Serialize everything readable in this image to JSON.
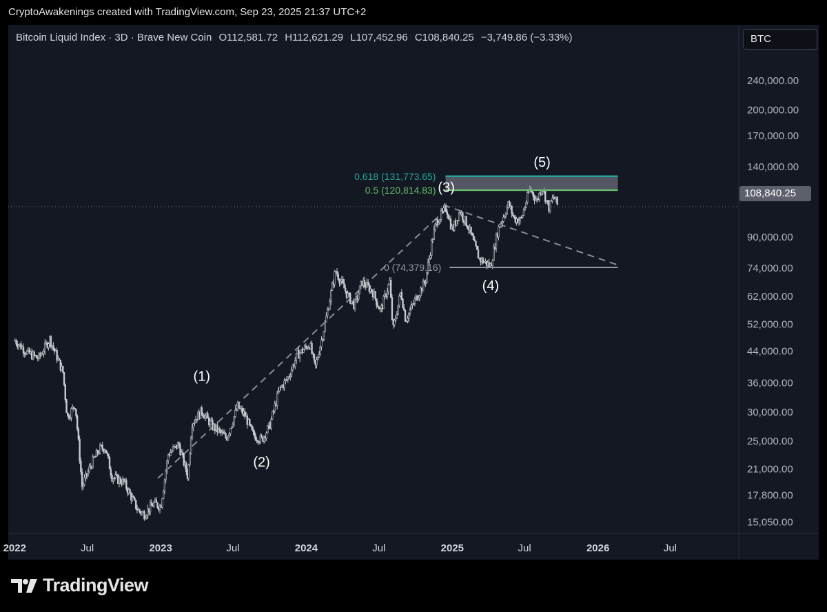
{
  "header": {
    "caption": "CryptoAwakenings created with TradingView.com, Sep 23, 2025 21:37 UTC+2"
  },
  "legend": {
    "title": "Bitcoin Liquid Index · 3D · Brave New Coin",
    "open": "O112,581.72",
    "high": "H112,621.29",
    "low": "L107,452.96",
    "close": "C108,840.25",
    "change": "−3,749.86 (−3.33%)"
  },
  "symbol_box": {
    "label": "BTC"
  },
  "last_price_badge": {
    "label": "108,840.25"
  },
  "footer": {
    "brand": "TradingView",
    "logo_icon": "tradingview-logo-icon"
  },
  "colors": {
    "background": "#141822",
    "candles": "#c8cacf",
    "fib_618": "#26a69a",
    "fib_05": "#66bb6a",
    "fib_0": "#9598a1",
    "zone": "#7e8190",
    "dashed_lines": "#8a8d96"
  },
  "chart_data": {
    "type": "line",
    "title": "Bitcoin Liquid Index · 3D · Brave New Coin",
    "scale": "log",
    "ylim": [
      14000,
      270000
    ],
    "xlim": [
      "2021-12-15",
      "2026-12-20"
    ],
    "y_ticks": [
      {
        "value": 15050,
        "label": "15,050.00"
      },
      {
        "value": 17800,
        "label": "17,800.00"
      },
      {
        "value": 21000,
        "label": "21,000.00"
      },
      {
        "value": 25000,
        "label": "25,000.00"
      },
      {
        "value": 30000,
        "label": "30,000.00"
      },
      {
        "value": 36000,
        "label": "36,000.00"
      },
      {
        "value": 44000,
        "label": "44,000.00"
      },
      {
        "value": 52000,
        "label": "52,000.00"
      },
      {
        "value": 62000,
        "label": "62,000.00"
      },
      {
        "value": 74000,
        "label": "74,000.00"
      },
      {
        "value": 90000,
        "label": "90,000.00"
      },
      {
        "value": 140000,
        "label": "140,000.00"
      },
      {
        "value": 170000,
        "label": "170,000.00"
      },
      {
        "value": 200000,
        "label": "200,000.00"
      },
      {
        "value": 240000,
        "label": "240,000.00"
      }
    ],
    "x_ticks": [
      {
        "date": "2021-12-31",
        "label": "2022"
      },
      {
        "date": "2022-07-01",
        "label": "Jul"
      },
      {
        "date": "2023-01-01",
        "label": "2023"
      },
      {
        "date": "2023-07-01",
        "label": "Jul"
      },
      {
        "date": "2024-01-01",
        "label": "2024"
      },
      {
        "date": "2024-07-01",
        "label": "Jul"
      },
      {
        "date": "2025-01-01",
        "label": "2025"
      },
      {
        "date": "2025-07-01",
        "label": "Jul"
      },
      {
        "date": "2026-01-01",
        "label": "2026"
      },
      {
        "date": "2026-07-01",
        "label": "Jul"
      }
    ],
    "series": [
      {
        "x": [
          "2022-01-01",
          "2022-02-01",
          "2022-03-01",
          "2022-03-29",
          "2022-05-01",
          "2022-05-12",
          "2022-06-01",
          "2022-06-18",
          "2022-07-10",
          "2022-08-01",
          "2022-08-15",
          "2022-09-01",
          "2022-10-01",
          "2022-11-05",
          "2022-11-21",
          "2022-12-15",
          "2023-01-01",
          "2023-01-20",
          "2023-02-15",
          "2023-03-10",
          "2023-03-20",
          "2023-04-14",
          "2023-05-10",
          "2023-06-15",
          "2023-07-13",
          "2023-08-01",
          "2023-08-20",
          "2023-09-11",
          "2023-10-01",
          "2023-10-25",
          "2023-11-15",
          "2023-12-10",
          "2024-01-10",
          "2024-01-23",
          "2024-02-15",
          "2024-03-14",
          "2024-04-15",
          "2024-05-01",
          "2024-05-20",
          "2024-06-15",
          "2024-07-05",
          "2024-07-28",
          "2024-08-05",
          "2024-08-25",
          "2024-09-06",
          "2024-10-01",
          "2024-10-25",
          "2024-11-12",
          "2024-11-22",
          "2024-12-17",
          "2025-01-01",
          "2025-01-20",
          "2025-02-10",
          "2025-02-28",
          "2025-03-10",
          "2025-04-07",
          "2025-04-25",
          "2025-05-22",
          "2025-06-05",
          "2025-06-22",
          "2025-07-14",
          "2025-08-01",
          "2025-08-14",
          "2025-08-30",
          "2025-09-13",
          "2025-09-23"
        ],
        "values": [
          47000,
          43500,
          42000,
          47500,
          38500,
          29000,
          31500,
          18800,
          21500,
          23800,
          24000,
          20000,
          19300,
          16200,
          15800,
          16900,
          16600,
          23000,
          24500,
          20000,
          28000,
          30200,
          27500,
          25500,
          31000,
          29300,
          26000,
          25200,
          27500,
          34500,
          37000,
          43000,
          46000,
          39500,
          51000,
          73000,
          62000,
          58500,
          68000,
          64000,
          56500,
          68000,
          50000,
          64000,
          53500,
          61000,
          68000,
          89000,
          99000,
          108000,
          94000,
          106000,
          96000,
          84000,
          78500,
          75000,
          94000,
          111000,
          101000,
          100000,
          122000,
          113000,
          124000,
          108000,
          116000,
          108840
        ]
      }
    ],
    "fib_levels": [
      {
        "ratio": "0.618",
        "label": "0.618 (131,773.65)",
        "value": 131773.65
      },
      {
        "ratio": "0.5",
        "label": "0.5 (120,814.83)",
        "value": 120814.83
      },
      {
        "ratio": "0",
        "label": "0 (74,379.16)",
        "value": 74379.16
      }
    ],
    "last_price": 108840.25,
    "wave_labels": [
      {
        "label": "(1)",
        "date": "2023-04-14",
        "value": 36500
      },
      {
        "label": "(2)",
        "date": "2023-09-11",
        "value": 21300
      },
      {
        "label": "(3)",
        "date": "2024-12-17",
        "value": 119500
      },
      {
        "label": "(4)",
        "date": "2025-04-07",
        "value": 64500
      },
      {
        "label": "(5)",
        "date": "2025-08-14",
        "value": 140000
      }
    ],
    "trend_lines": [
      {
        "from": {
          "date": "2022-12-25",
          "value": 19800
        },
        "to": {
          "date": "2024-12-20",
          "value": 108000
        }
      },
      {
        "from": {
          "date": "2024-12-10",
          "value": 110000
        },
        "to": {
          "date": "2026-02-20",
          "value": 75500
        }
      }
    ],
    "grid": false,
    "legend_position": "top-left"
  }
}
